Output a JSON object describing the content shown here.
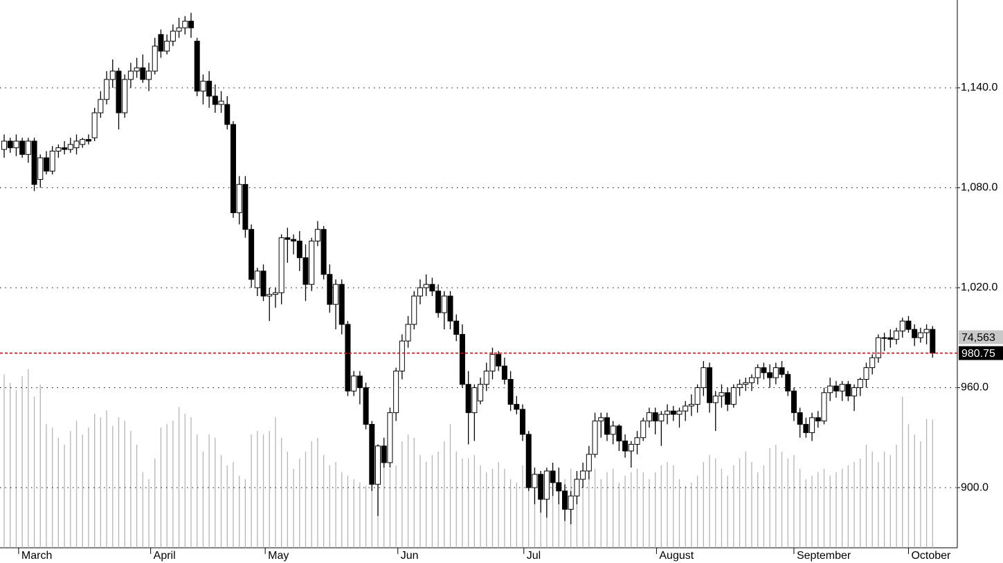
{
  "chart_data": {
    "type": "candlestick",
    "xlim": [
      -0.69,
      158.1
    ],
    "xticks": [
      {
        "value": 2.4,
        "label": "March"
      },
      {
        "value": 24.3,
        "label": "April"
      },
      {
        "value": 43.3,
        "label": "May"
      },
      {
        "value": 65.3,
        "label": "Jun"
      },
      {
        "value": 86.2,
        "label": "Jul"
      },
      {
        "value": 108.2,
        "label": "August"
      },
      {
        "value": 131,
        "label": "September"
      },
      {
        "value": 150,
        "label": "October"
      }
    ],
    "ylim": [
      863.9,
      1192.7
    ],
    "yticks": [
      {
        "value": 900,
        "label": "900.0"
      },
      {
        "value": 960,
        "label": "960.0"
      },
      {
        "value": 1020,
        "label": "1,020.0"
      },
      {
        "value": 1080,
        "label": "1,080.0"
      },
      {
        "value": 1140,
        "label": "1,140.0"
      }
    ],
    "vlim": [
      0,
      319000
    ],
    "grid": true,
    "up_color": "#ffffff",
    "down_color": "#000000",
    "volume_color": "#b4b4b4",
    "price_line_color": "#e00000",
    "price_label": "980.75",
    "volume_label": "74,563",
    "ohlc": [
      [
        1103,
        1112,
        1098,
        1108
      ],
      [
        1108,
        1110,
        1101,
        1104
      ],
      [
        1104,
        1112,
        1099,
        1108
      ],
      [
        1108,
        1110,
        1098,
        1100
      ],
      [
        1100,
        1110,
        1095,
        1108
      ],
      [
        1108,
        1110,
        1078,
        1082
      ],
      [
        1085,
        1100,
        1080,
        1098
      ],
      [
        1098,
        1102,
        1088,
        1090
      ],
      [
        1090,
        1105,
        1088,
        1102
      ],
      [
        1102,
        1106,
        1098,
        1104
      ],
      [
        1104,
        1108,
        1100,
        1103
      ],
      [
        1103,
        1110,
        1101,
        1106
      ],
      [
        1104,
        1112,
        1100,
        1108
      ],
      [
        1106,
        1110,
        1104,
        1109
      ],
      [
        1109,
        1112,
        1106,
        1108
      ],
      [
        1110,
        1128,
        1108,
        1125
      ],
      [
        1125,
        1138,
        1122,
        1133
      ],
      [
        1133,
        1150,
        1130,
        1145
      ],
      [
        1145,
        1157,
        1140,
        1150
      ],
      [
        1150,
        1152,
        1115,
        1125
      ],
      [
        1125,
        1148,
        1122,
        1145
      ],
      [
        1145,
        1155,
        1140,
        1150
      ],
      [
        1150,
        1158,
        1146,
        1152
      ],
      [
        1152,
        1160,
        1143,
        1145
      ],
      [
        1145,
        1155,
        1138,
        1150
      ],
      [
        1150,
        1170,
        1148,
        1165
      ],
      [
        1172,
        1175,
        1158,
        1162
      ],
      [
        1162,
        1172,
        1160,
        1168
      ],
      [
        1168,
        1178,
        1165,
        1174
      ],
      [
        1174,
        1182,
        1170,
        1176
      ],
      [
        1176,
        1183,
        1172,
        1180
      ],
      [
        1180,
        1185,
        1170,
        1176
      ],
      [
        1168,
        1170,
        1135,
        1138
      ],
      [
        1138,
        1148,
        1130,
        1144
      ],
      [
        1144,
        1150,
        1128,
        1135
      ],
      [
        1135,
        1142,
        1125,
        1130
      ],
      [
        1130,
        1138,
        1125,
        1132
      ],
      [
        1130,
        1135,
        1115,
        1118
      ],
      [
        1118,
        1120,
        1062,
        1065
      ],
      [
        1065,
        1087,
        1058,
        1082
      ],
      [
        1082,
        1087,
        1050,
        1055
      ],
      [
        1055,
        1058,
        1020,
        1025
      ],
      [
        1020,
        1032,
        1015,
        1030
      ],
      [
        1030,
        1034,
        1012,
        1015
      ],
      [
        1015,
        1020,
        1000,
        1016
      ],
      [
        1016,
        1020,
        1008,
        1017
      ],
      [
        1017,
        1052,
        1010,
        1050
      ],
      [
        1050,
        1056,
        1035,
        1049
      ],
      [
        1049,
        1052,
        1040,
        1048
      ],
      [
        1048,
        1054,
        1030,
        1038
      ],
      [
        1038,
        1046,
        1012,
        1022
      ],
      [
        1022,
        1050,
        1018,
        1048
      ],
      [
        1048,
        1060,
        1045,
        1055
      ],
      [
        1055,
        1057,
        1025,
        1028
      ],
      [
        1028,
        1034,
        1005,
        1010
      ],
      [
        1010,
        1025,
        995,
        1022
      ],
      [
        1022,
        1025,
        992,
        998
      ],
      [
        998,
        1000,
        955,
        958
      ],
      [
        958,
        970,
        955,
        967
      ],
      [
        967,
        970,
        950,
        960
      ],
      [
        960,
        963,
        935,
        938
      ],
      [
        938,
        940,
        898,
        902
      ],
      [
        902,
        926,
        883,
        925
      ],
      [
        925,
        930,
        912,
        915
      ],
      [
        915,
        948,
        912,
        945
      ],
      [
        945,
        972,
        940,
        970
      ],
      [
        970,
        992,
        965,
        988
      ],
      [
        988,
        1003,
        984,
        998
      ],
      [
        998,
        1018,
        995,
        1015
      ],
      [
        1015,
        1025,
        1010,
        1020
      ],
      [
        1020,
        1028,
        1015,
        1022
      ],
      [
        1022,
        1026,
        1015,
        1018
      ],
      [
        1018,
        1022,
        1002,
        1005
      ],
      [
        1005,
        1018,
        995,
        1015
      ],
      [
        1015,
        1018,
        995,
        1000
      ],
      [
        1000,
        1004,
        988,
        992
      ],
      [
        992,
        998,
        960,
        962
      ],
      [
        962,
        970,
        926,
        945
      ],
      [
        945,
        962,
        928,
        960
      ],
      [
        952,
        966,
        950,
        962
      ],
      [
        962,
        975,
        958,
        970
      ],
      [
        970,
        984,
        965,
        980
      ],
      [
        980,
        982,
        970,
        973
      ],
      [
        973,
        978,
        962,
        965
      ],
      [
        965,
        970,
        946,
        950
      ],
      [
        950,
        955,
        944,
        947
      ],
      [
        947,
        950,
        928,
        932
      ],
      [
        932,
        934,
        898,
        900
      ],
      [
        900,
        912,
        890,
        908
      ],
      [
        908,
        910,
        885,
        893
      ],
      [
        893,
        912,
        882,
        910
      ],
      [
        910,
        915,
        895,
        903
      ],
      [
        903,
        912,
        890,
        898
      ],
      [
        898,
        902,
        880,
        887
      ],
      [
        887,
        898,
        878,
        895
      ],
      [
        895,
        910,
        890,
        905
      ],
      [
        905,
        915,
        900,
        910
      ],
      [
        910,
        925,
        905,
        920
      ],
      [
        920,
        945,
        918,
        940
      ],
      [
        940,
        945,
        930,
        942
      ],
      [
        942,
        945,
        928,
        932
      ],
      [
        932,
        940,
        926,
        937
      ],
      [
        937,
        938,
        922,
        928
      ],
      [
        928,
        932,
        918,
        922
      ],
      [
        922,
        928,
        912,
        926
      ],
      [
        926,
        934,
        920,
        930
      ],
      [
        930,
        942,
        928,
        940
      ],
      [
        940,
        948,
        936,
        945
      ],
      [
        945,
        948,
        932,
        940
      ],
      [
        940,
        946,
        925,
        944
      ],
      [
        944,
        950,
        938,
        946
      ],
      [
        946,
        949,
        940,
        944
      ],
      [
        944,
        948,
        936,
        946
      ],
      [
        946,
        952,
        940,
        949
      ],
      [
        949,
        956,
        943,
        950
      ],
      [
        950,
        962,
        945,
        960
      ],
      [
        960,
        976,
        955,
        972
      ],
      [
        972,
        975,
        945,
        951
      ],
      [
        951,
        958,
        934,
        955
      ],
      [
        955,
        962,
        948,
        957
      ],
      [
        957,
        960,
        946,
        950
      ],
      [
        950,
        962,
        948,
        960
      ],
      [
        960,
        965,
        955,
        962
      ],
      [
        962,
        966,
        958,
        963
      ],
      [
        963,
        968,
        958,
        966
      ],
      [
        966,
        974,
        962,
        972
      ],
      [
        972,
        975,
        965,
        969
      ],
      [
        969,
        974,
        960,
        966
      ],
      [
        966,
        975,
        962,
        972
      ],
      [
        972,
        976,
        966,
        968
      ],
      [
        968,
        970,
        955,
        958
      ],
      [
        958,
        960,
        940,
        945
      ],
      [
        945,
        948,
        930,
        938
      ],
      [
        938,
        942,
        930,
        933
      ],
      [
        933,
        945,
        928,
        942
      ],
      [
        942,
        946,
        936,
        940
      ],
      [
        940,
        960,
        938,
        957
      ],
      [
        957,
        966,
        952,
        961
      ],
      [
        961,
        964,
        954,
        958
      ],
      [
        958,
        964,
        952,
        962
      ],
      [
        962,
        964,
        952,
        955
      ],
      [
        955,
        962,
        946,
        960
      ],
      [
        960,
        966,
        955,
        965
      ],
      [
        965,
        975,
        960,
        972
      ],
      [
        972,
        980,
        968,
        978
      ],
      [
        978,
        992,
        975,
        990
      ],
      [
        990,
        993,
        982,
        990
      ],
      [
        990,
        995,
        984,
        989
      ],
      [
        989,
        996,
        986,
        994
      ],
      [
        994,
        1002,
        990,
        1000
      ],
      [
        1000,
        1003,
        993,
        995
      ],
      [
        995,
        998,
        985,
        990
      ],
      [
        990,
        996,
        987,
        993
      ],
      [
        993,
        998,
        986,
        995
      ],
      [
        995,
        997,
        978,
        980.75
      ]
    ],
    "volume": [
      101000,
      96000,
      92000,
      100000,
      104000,
      88000,
      95000,
      72000,
      70000,
      64000,
      60000,
      68000,
      74000,
      66000,
      70000,
      78000,
      76000,
      80000,
      71000,
      76000,
      74000,
      68000,
      60000,
      44000,
      40000,
      52000,
      70000,
      72000,
      74000,
      82000,
      78000,
      76000,
      66000,
      56000,
      66000,
      64000,
      54000,
      48000,
      50000,
      42000,
      40000,
      66000,
      68000,
      66000,
      68000,
      76000,
      64000,
      56000,
      46000,
      52000,
      56000,
      62000,
      64000,
      54000,
      48000,
      50000,
      44000,
      42000,
      40000,
      38000,
      36000,
      58000,
      60000,
      50000,
      46000,
      48000,
      62000,
      66000,
      64000,
      54000,
      50000,
      54000,
      56000,
      62000,
      72000,
      56000,
      52000,
      52000,
      54000,
      48000,
      44000,
      46000,
      50000,
      46000,
      40000,
      38000,
      48000,
      52000,
      44000,
      40000,
      38000,
      34000,
      36000,
      40000,
      46000,
      38000,
      36000,
      42000,
      46000,
      40000,
      44000,
      46000,
      38000,
      42000,
      44000,
      46000,
      44000,
      40000,
      44000,
      48000,
      50000,
      48000,
      40000,
      36000,
      38000,
      42000,
      50000,
      54000,
      52000,
      46000,
      42000,
      48000,
      52000,
      56000,
      50000,
      44000,
      48000,
      58000,
      60000,
      56000,
      52000,
      54000,
      46000,
      40000,
      42000,
      44000,
      46000,
      42000,
      44000,
      46000,
      48000,
      50000,
      52000,
      60000,
      56000,
      50000,
      56000,
      54000,
      60000,
      88000,
      72000,
      66000,
      62000,
      75000,
      74563
    ]
  }
}
